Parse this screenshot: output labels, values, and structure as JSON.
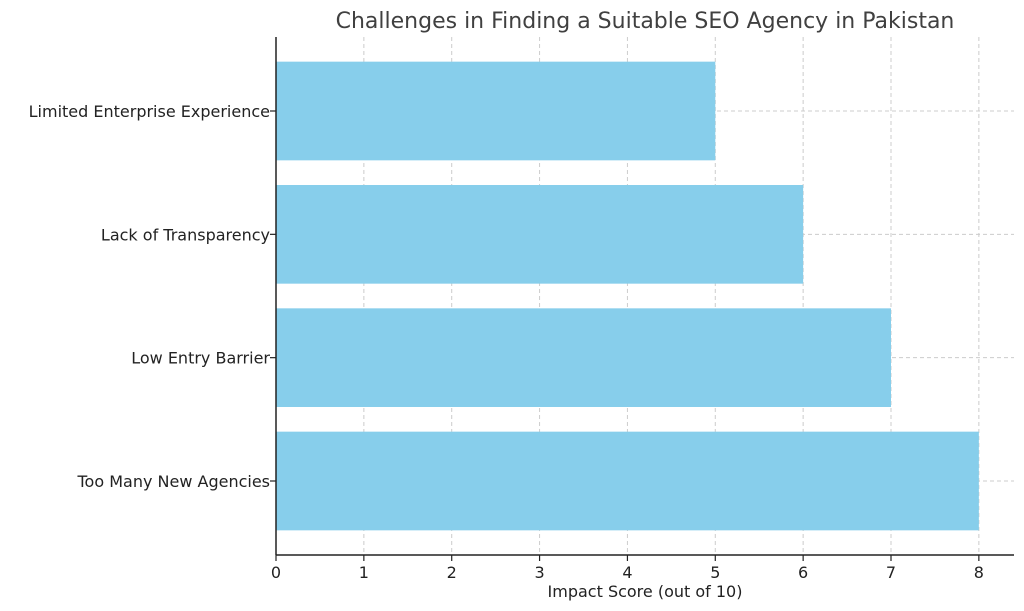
{
  "chart_data": {
    "type": "bar",
    "orientation": "horizontal",
    "title": "Challenges in Finding a Suitable SEO Agency in Pakistan",
    "xlabel": "Impact Score (out of 10)",
    "ylabel": "",
    "categories": [
      "Too Many New Agencies",
      "Low Entry Barrier",
      "Lack of Transparency",
      "Limited Enterprise Experience"
    ],
    "values": [
      8,
      7,
      6,
      5
    ],
    "xlim": [
      0,
      8.4
    ],
    "xticks": [
      0,
      1,
      2,
      3,
      4,
      5,
      6,
      7,
      8
    ],
    "grid": true,
    "bar_color": "#87ceeb"
  }
}
